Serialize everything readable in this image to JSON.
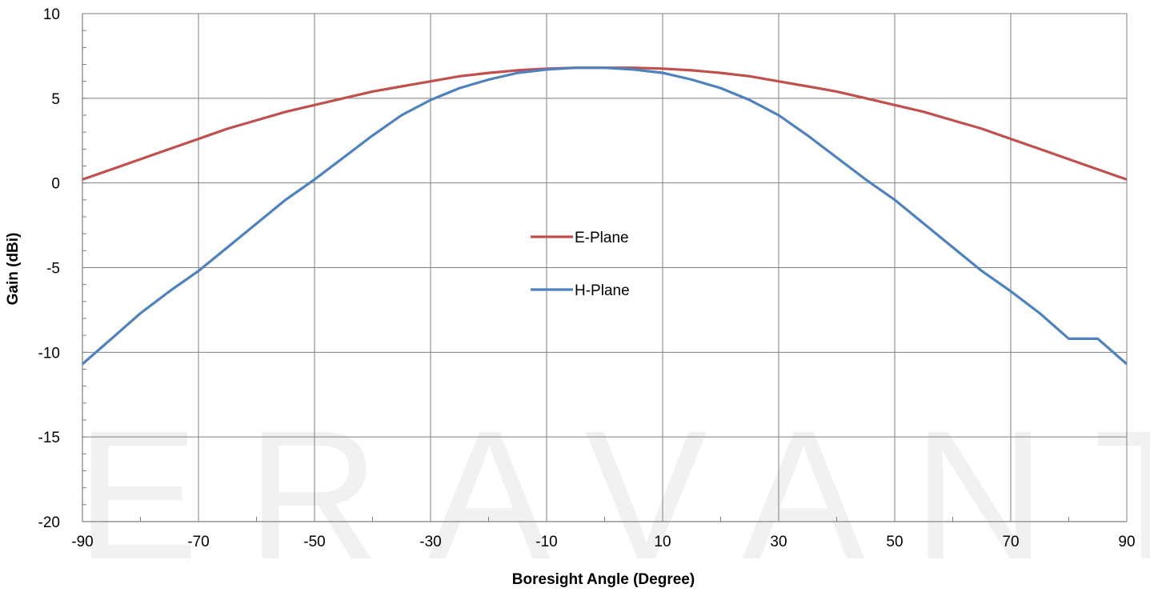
{
  "chart_data": {
    "type": "line",
    "xlabel": "Boresight Angle (Degree)",
    "ylabel": "Gain (dBi)",
    "xlim": [
      -90,
      90
    ],
    "ylim": [
      -20,
      10
    ],
    "x_ticks": [
      -90,
      -70,
      -50,
      -30,
      -10,
      10,
      30,
      50,
      70,
      90
    ],
    "y_ticks": [
      10,
      5,
      0,
      -5,
      -10,
      -15,
      -20
    ],
    "grid": true,
    "legend_position": "center",
    "watermark": "ERAVANT",
    "series": [
      {
        "name": "E-Plane",
        "color": "#C0504D",
        "x": [
          -90,
          -85,
          -80,
          -75,
          -70,
          -65,
          -60,
          -55,
          -50,
          -45,
          -40,
          -35,
          -30,
          -25,
          -20,
          -15,
          -10,
          -5,
          0,
          5,
          10,
          15,
          20,
          25,
          30,
          35,
          40,
          45,
          50,
          55,
          60,
          65,
          70,
          75,
          80,
          85,
          90
        ],
        "values": [
          0.2,
          0.8,
          1.4,
          2.0,
          2.6,
          3.2,
          3.7,
          4.2,
          4.6,
          5.0,
          5.4,
          5.7,
          6.0,
          6.3,
          6.5,
          6.65,
          6.75,
          6.8,
          6.8,
          6.8,
          6.75,
          6.65,
          6.5,
          6.3,
          6.0,
          5.7,
          5.4,
          5.0,
          4.6,
          4.2,
          3.7,
          3.2,
          2.6,
          2.0,
          1.4,
          0.8,
          0.2
        ]
      },
      {
        "name": "H-Plane",
        "color": "#4F81BD",
        "x": [
          -90,
          -85,
          -80,
          -75,
          -70,
          -65,
          -60,
          -55,
          -50,
          -45,
          -40,
          -35,
          -30,
          -25,
          -20,
          -15,
          -10,
          -5,
          0,
          5,
          10,
          15,
          20,
          25,
          30,
          35,
          40,
          45,
          50,
          55,
          60,
          65,
          70,
          75,
          80,
          85,
          90
        ],
        "values": [
          -10.7,
          -9.2,
          -7.7,
          -6.4,
          -5.2,
          -3.8,
          -2.4,
          -1.0,
          0.2,
          1.5,
          2.8,
          4.0,
          4.9,
          5.6,
          6.1,
          6.5,
          6.7,
          6.8,
          6.8,
          6.7,
          6.5,
          6.1,
          5.6,
          4.9,
          4.0,
          2.8,
          1.5,
          0.2,
          -1.0,
          -2.4,
          -3.8,
          -5.2,
          -6.4,
          -7.7,
          -9.2,
          -10.7,
          -10.7
        ]
      }
    ]
  }
}
